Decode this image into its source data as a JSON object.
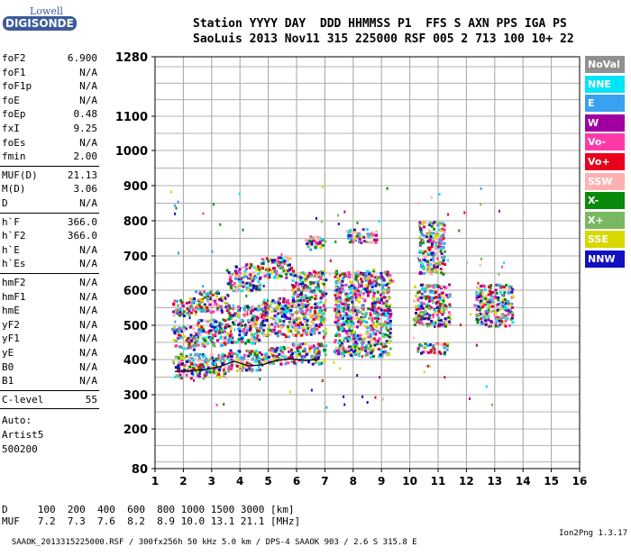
{
  "logo": {
    "line1": "Lowell",
    "line2": "DIGISONDE"
  },
  "header": {
    "line1": "Station YYYY DAY  DDD HHMMSS P1  FFS S AXN PPS IGA PS",
    "line2": "SaoLuis 2013 Nov11 315 225000 RSF 005 2 713 100 10+ 22"
  },
  "params_group1": [
    {
      "name": "foF2",
      "value": "6.900"
    },
    {
      "name": "foF1",
      "value": "N/A"
    },
    {
      "name": "foF1p",
      "value": "N/A"
    },
    {
      "name": "foE",
      "value": "N/A"
    },
    {
      "name": "foEp",
      "value": "0.48"
    },
    {
      "name": "fxI",
      "value": "9.25"
    },
    {
      "name": "foEs",
      "value": "N/A"
    },
    {
      "name": "fmin",
      "value": "2.00"
    }
  ],
  "params_group2": [
    {
      "name": "MUF(D)",
      "value": "21.13"
    },
    {
      "name": "M(D)",
      "value": "3.06"
    },
    {
      "name": "D",
      "value": "N/A"
    }
  ],
  "params_group3": [
    {
      "name": "h`F",
      "value": "366.0"
    },
    {
      "name": "h`F2",
      "value": "366.0"
    },
    {
      "name": "h`E",
      "value": "N/A"
    },
    {
      "name": "h`Es",
      "value": "N/A"
    }
  ],
  "params_group4": [
    {
      "name": "hmF2",
      "value": "N/A"
    },
    {
      "name": "hmF1",
      "value": "N/A"
    },
    {
      "name": "hmE",
      "value": "N/A"
    },
    {
      "name": "yF2",
      "value": "N/A"
    },
    {
      "name": "yF1",
      "value": "N/A"
    },
    {
      "name": "yE",
      "value": "N/A"
    },
    {
      "name": "B0",
      "value": "N/A"
    },
    {
      "name": "B1",
      "value": "N/A"
    }
  ],
  "params_group5": [
    {
      "name": "C-level",
      "value": "55"
    }
  ],
  "notes": [
    "Auto:",
    "Artist5",
    "500200"
  ],
  "legend": [
    {
      "label": "NoVal",
      "color": "#909090"
    },
    {
      "label": "NNE",
      "color": "#00e5f5"
    },
    {
      "label": "E",
      "color": "#3aa0f0"
    },
    {
      "label": "W",
      "color": "#a000a0"
    },
    {
      "label": "Vo-",
      "color": "#ff3aa8"
    },
    {
      "label": "Vo+",
      "color": "#e8001c"
    },
    {
      "label": "SSW",
      "color": "#ffb0b0"
    },
    {
      "label": "X-",
      "color": "#0a8a0a"
    },
    {
      "label": "X+",
      "color": "#78b860"
    },
    {
      "label": "SSE",
      "color": "#d8d800"
    },
    {
      "label": "NNW",
      "color": "#1010c0"
    }
  ],
  "footer": {
    "line1": "D     100  200  400  600  800 1000 1500 3000 [km]",
    "line2": "MUF   7.2  7.3  7.6  8.2  8.9 10.0 13.1 21.1 [MHz]"
  },
  "bottom": {
    "text": "SAAOK_2013315225000.RSF / 300fx256h 50 kHz 5.0 km / DPS-4 SAAOK 903 / 2.6 S 315.8 E",
    "version": "Ion2Png 1.3.17"
  },
  "chart_data": {
    "type": "scatter",
    "title": "",
    "xlabel": "",
    "ylabel": "",
    "xlim": [
      1,
      16
    ],
    "ylim": [
      80,
      1280
    ],
    "x_ticks": [
      1,
      2,
      3,
      4,
      5,
      6,
      7,
      8,
      9,
      10,
      11,
      12,
      13,
      14,
      15,
      16
    ],
    "y_ticks": [
      80,
      200,
      300,
      400,
      500,
      600,
      700,
      800,
      900,
      1000,
      1100,
      1280
    ],
    "grid": true,
    "trace": {
      "color": "#000000",
      "x": [
        1.7,
        2.2,
        2.8,
        3.3,
        3.8,
        4.3,
        4.8,
        5.3,
        5.8,
        6.3,
        6.8
      ],
      "y": [
        366,
        368,
        372,
        380,
        395,
        382,
        385,
        398,
        402,
        398,
        400
      ]
    },
    "echo_clusters": [
      {
        "x": [
          1.6,
          2.4
        ],
        "y": [
          350,
          420
        ]
      },
      {
        "x": [
          1.6,
          2.4
        ],
        "y": [
          430,
          500
        ]
      },
      {
        "x": [
          1.6,
          2.4
        ],
        "y": [
          530,
          580
        ]
      },
      {
        "x": [
          2.4,
          3.5
        ],
        "y": [
          350,
          420
        ]
      },
      {
        "x": [
          2.4,
          3.5
        ],
        "y": [
          440,
          520
        ]
      },
      {
        "x": [
          2.4,
          3.5
        ],
        "y": [
          540,
          600
        ]
      },
      {
        "x": [
          3.5,
          4.7
        ],
        "y": [
          370,
          430
        ]
      },
      {
        "x": [
          3.5,
          4.7
        ],
        "y": [
          450,
          560
        ]
      },
      {
        "x": [
          3.5,
          4.7
        ],
        "y": [
          600,
          680
        ]
      },
      {
        "x": [
          4.7,
          5.8
        ],
        "y": [
          390,
          440
        ]
      },
      {
        "x": [
          4.7,
          5.8
        ],
        "y": [
          470,
          580
        ]
      },
      {
        "x": [
          4.7,
          5.8
        ],
        "y": [
          640,
          700
        ]
      },
      {
        "x": [
          5.8,
          7.0
        ],
        "y": [
          390,
          450
        ]
      },
      {
        "x": [
          5.8,
          7.0
        ],
        "y": [
          470,
          660
        ]
      },
      {
        "x": [
          6.3,
          7.0
        ],
        "y": [
          720,
          760
        ]
      },
      {
        "x": [
          7.3,
          9.3
        ],
        "y": [
          410,
          660
        ]
      },
      {
        "x": [
          7.7,
          8.8
        ],
        "y": [
          740,
          780
        ]
      },
      {
        "x": [
          10.1,
          11.4
        ],
        "y": [
          500,
          620
        ]
      },
      {
        "x": [
          10.2,
          11.3
        ],
        "y": [
          420,
          450
        ]
      },
      {
        "x": [
          10.3,
          11.2
        ],
        "y": [
          650,
          800
        ]
      },
      {
        "x": [
          12.3,
          13.6
        ],
        "y": [
          500,
          620
        ]
      }
    ]
  }
}
